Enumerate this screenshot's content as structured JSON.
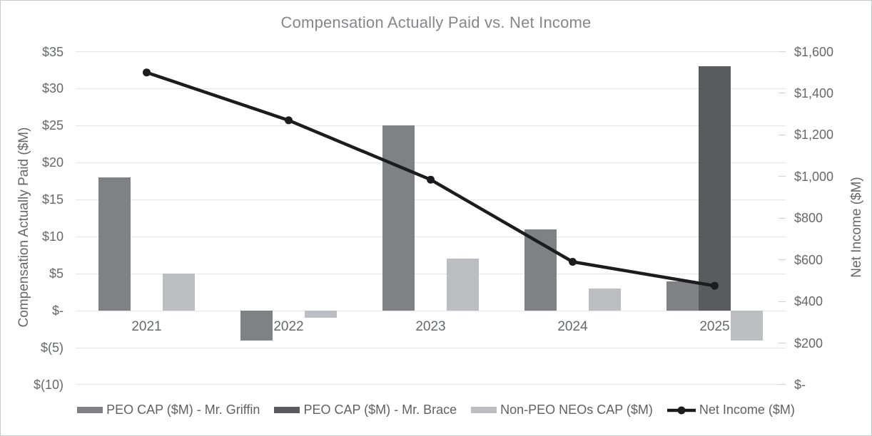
{
  "chart_data": {
    "type": "combo-bar-line",
    "title": "Compensation Actually Paid vs. Net Income",
    "categories": [
      "2021",
      "2022",
      "2023",
      "2024",
      "2025"
    ],
    "series": [
      {
        "key": "peo-cap-griffin",
        "name": "PEO CAP ($M) - Mr. Griffin",
        "type": "bar",
        "axis": "left",
        "color": "#808184",
        "values": [
          18,
          -4,
          25,
          11,
          4
        ]
      },
      {
        "key": "peo-cap-brace",
        "name": "PEO CAP ($M) - Mr. Brace",
        "type": "bar",
        "axis": "left",
        "color": "#595b5e",
        "values": [
          null,
          null,
          null,
          null,
          33
        ]
      },
      {
        "key": "non-peo-neos-cap",
        "name": "Non-PEO NEOs CAP ($M)",
        "type": "bar",
        "axis": "left",
        "color": "#bcbec1",
        "values": [
          5,
          -1,
          7,
          3,
          -4
        ]
      },
      {
        "key": "net-income",
        "name": "Net Income ($M)",
        "type": "line",
        "axis": "right",
        "color": "#1c1c1e",
        "values": [
          1500,
          1270,
          985,
          590,
          475
        ]
      }
    ],
    "left_axis": {
      "label": "Compensation Actually Paid ($M)",
      "ticks": [
        "$35",
        "$30",
        "$25",
        "$20",
        "$15",
        "$10",
        "$5",
        "$-",
        "$(5)",
        "$(10)"
      ],
      "tick_values": [
        35,
        30,
        25,
        20,
        15,
        10,
        5,
        0,
        -5,
        -10
      ],
      "max": 35,
      "min": -10
    },
    "right_axis": {
      "label": "Net Income ($M)",
      "ticks": [
        "$1,600",
        "$1,400",
        "$1,200",
        "$1,000",
        "$800",
        "$600",
        "$400",
        "$200",
        "$-"
      ],
      "tick_values": [
        1600,
        1400,
        1200,
        1000,
        800,
        600,
        400,
        200,
        0
      ],
      "max": 1600,
      "min": 0
    },
    "legend_position": "bottom",
    "grid": true,
    "colors": {
      "grid": "#e4e5e7",
      "tick_mark": "#d2d3d5",
      "axis_text": "#66686b",
      "title_text": "#85878a",
      "legend_text": "#5f6163",
      "border": "#c7c9cb"
    }
  }
}
